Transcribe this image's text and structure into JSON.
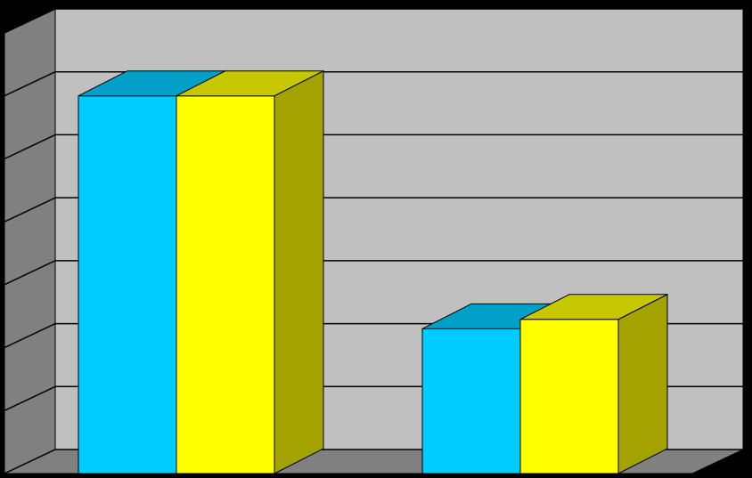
{
  "chart_data": {
    "type": "bar3d",
    "categories": [
      null,
      null
    ],
    "series": [
      {
        "color": "#00ccff",
        "values": [
          6.0,
          2.3
        ]
      },
      {
        "color": "#ffff00",
        "values": [
          6.0,
          2.45
        ]
      }
    ],
    "ylim": [
      0,
      7
    ],
    "yticks": [
      0,
      1,
      2,
      3,
      4,
      5,
      6,
      7
    ],
    "grid": true
  }
}
